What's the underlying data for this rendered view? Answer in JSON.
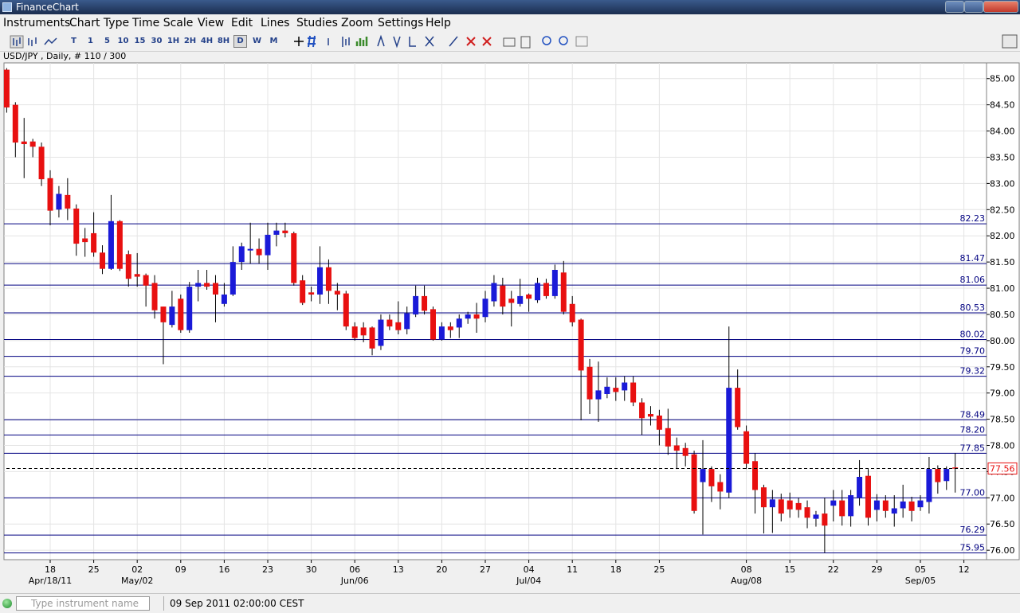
{
  "window": {
    "title": "FinanceChart"
  },
  "menu": [
    "Instruments",
    "Chart Type",
    "Time Scale",
    "View",
    "Edit",
    "Lines",
    "Studies",
    "Zoom",
    "Settings",
    "Help"
  ],
  "toolbar": {
    "periods": [
      "T",
      "1",
      "5",
      "10",
      "15",
      "30",
      "1H",
      "2H",
      "4H",
      "8H",
      "D",
      "W",
      "M"
    ],
    "selected": "D"
  },
  "status": {
    "placeholder": "Type instrument name",
    "datetime": "09 Sep 2011 02:00:00 CEST"
  },
  "chart_data": {
    "type": "candlestick",
    "title": "USD/JPY , Daily, # 110 / 300",
    "up_color": "#1a1ad8",
    "down_color": "#e81010",
    "level_color": "#000080",
    "grid": true,
    "open": [
      85.17,
      84.5,
      83.8,
      83.8,
      83.7,
      83.1,
      82.5,
      82.78,
      82.52,
      81.95,
      82.05,
      81.68,
      81.37,
      82.28,
      81.65,
      81.27,
      81.25,
      81.1,
      80.65,
      80.3,
      80.8,
      80.2,
      81.03,
      81.1,
      81.1,
      80.7,
      80.88,
      81.5,
      81.72,
      81.75,
      81.63,
      82.02,
      82.1,
      82.05,
      81.15,
      80.92,
      80.88,
      81.4,
      80.95,
      80.9,
      80.27,
      80.25,
      80.25,
      79.9,
      80.4,
      80.35,
      80.22,
      80.5,
      80.85,
      80.6,
      80.02,
      80.27,
      80.25,
      80.42,
      80.5,
      80.45,
      80.75,
      81.05,
      80.8,
      80.7,
      80.88,
      80.77,
      81.1,
      80.85,
      81.3,
      80.7,
      80.4,
      79.5,
      78.88,
      78.98,
      79.1,
      79.05,
      79.2,
      78.82,
      78.6,
      78.57,
      78.33,
      78.0,
      77.95,
      77.83,
      77.3,
      77.55,
      77.3,
      77.1,
      79.1,
      78.27,
      77.7,
      77.2,
      76.82,
      76.97,
      76.95,
      76.9,
      76.82,
      76.6,
      76.7,
      76.85,
      76.95,
      76.65,
      77.0,
      77.42,
      76.77,
      76.95,
      76.7,
      76.8,
      76.93,
      76.82,
      76.92,
      77.55,
      77.32,
      77.58
    ],
    "high": [
      85.2,
      84.55,
      84.25,
      83.85,
      83.78,
      83.25,
      82.95,
      83.1,
      82.6,
      82.15,
      82.45,
      81.82,
      82.78,
      82.3,
      81.72,
      81.67,
      81.28,
      81.25,
      80.65,
      80.95,
      80.88,
      81.12,
      81.35,
      81.35,
      81.25,
      81.1,
      81.8,
      81.87,
      82.25,
      81.95,
      82.25,
      82.25,
      82.25,
      82.08,
      81.25,
      81.03,
      81.8,
      81.55,
      81.1,
      80.95,
      80.35,
      80.35,
      80.27,
      80.5,
      80.5,
      80.75,
      80.65,
      81.05,
      81.05,
      80.65,
      80.35,
      80.35,
      80.5,
      80.55,
      80.72,
      80.95,
      81.25,
      81.2,
      80.95,
      81.18,
      80.9,
      81.2,
      81.18,
      81.45,
      81.52,
      80.85,
      80.42,
      79.65,
      79.6,
      79.3,
      79.3,
      79.32,
      79.32,
      78.9,
      78.75,
      78.68,
      78.7,
      78.15,
      78.05,
      77.9,
      78.1,
      77.6,
      77.45,
      80.27,
      79.45,
      78.38,
      77.85,
      77.25,
      77.15,
      77.08,
      77.1,
      77.0,
      76.95,
      76.75,
      77.0,
      77.15,
      77.15,
      77.15,
      77.72,
      77.55,
      77.07,
      77.05,
      77.05,
      77.25,
      77.02,
      77.05,
      77.78,
      77.62,
      77.6,
      77.85
    ],
    "low": [
      84.35,
      83.5,
      83.1,
      83.5,
      82.95,
      82.2,
      82.35,
      82.3,
      81.62,
      81.6,
      81.6,
      81.27,
      81.35,
      81.33,
      81.03,
      81.03,
      80.65,
      80.42,
      79.55,
      80.25,
      80.15,
      80.15,
      80.75,
      80.97,
      80.35,
      80.65,
      80.85,
      81.35,
      81.47,
      81.47,
      81.35,
      81.8,
      81.97,
      81.05,
      80.68,
      80.75,
      80.7,
      80.7,
      80.58,
      80.2,
      80.0,
      79.97,
      79.72,
      79.82,
      80.2,
      80.12,
      80.12,
      80.45,
      80.5,
      80.0,
      80.0,
      80.05,
      80.05,
      80.32,
      80.15,
      80.35,
      80.65,
      80.5,
      80.27,
      80.65,
      80.55,
      80.72,
      80.8,
      80.8,
      80.5,
      80.27,
      78.48,
      78.6,
      78.45,
      78.9,
      78.85,
      78.85,
      78.75,
      78.2,
      78.38,
      78.0,
      77.82,
      77.55,
      77.6,
      76.7,
      76.3,
      76.92,
      76.78,
      77.0,
      78.3,
      77.55,
      76.7,
      76.32,
      76.33,
      76.55,
      76.62,
      76.62,
      76.42,
      76.45,
      75.95,
      76.55,
      76.47,
      76.45,
      76.85,
      76.47,
      76.55,
      76.62,
      76.45,
      76.62,
      76.55,
      76.75,
      76.7,
      77.08,
      77.15,
      77.1
    ],
    "close": [
      84.45,
      83.78,
      83.75,
      83.7,
      83.08,
      82.48,
      82.8,
      82.52,
      81.85,
      81.88,
      81.68,
      81.37,
      82.28,
      81.37,
      81.18,
      81.22,
      81.05,
      80.58,
      80.35,
      80.65,
      80.2,
      81.03,
      81.1,
      81.03,
      80.88,
      80.88,
      81.5,
      81.8,
      81.75,
      81.63,
      82.02,
      82.1,
      82.05,
      81.1,
      80.72,
      80.88,
      81.4,
      80.95,
      80.88,
      80.27,
      80.05,
      80.1,
      79.85,
      80.4,
      80.27,
      80.2,
      80.52,
      80.85,
      80.57,
      80.02,
      80.27,
      80.2,
      80.42,
      80.5,
      80.42,
      80.8,
      81.1,
      80.65,
      80.72,
      80.85,
      80.8,
      81.1,
      80.85,
      81.35,
      80.55,
      80.35,
      79.43,
      78.88,
      79.05,
      79.12,
      79.02,
      79.2,
      78.82,
      78.52,
      78.55,
      78.3,
      77.98,
      77.9,
      77.8,
      76.75,
      77.55,
      77.22,
      77.12,
      79.1,
      78.35,
      77.65,
      77.15,
      76.82,
      76.97,
      76.7,
      76.78,
      76.77,
      76.62,
      76.68,
      76.47,
      76.95,
      76.65,
      77.05,
      77.4,
      76.62,
      76.95,
      76.75,
      76.8,
      76.93,
      76.75,
      76.95,
      77.55,
      77.3,
      77.55,
      77.56
    ],
    "ylim": [
      75.82,
      85.3
    ],
    "yticks": [
      {
        "value": 76,
        "label": "76.00"
      },
      {
        "value": 76.5,
        "label": "76.50"
      },
      {
        "value": 77,
        "label": "77.00"
      },
      {
        "value": 77.5,
        "label": "77.50"
      },
      {
        "value": 78,
        "label": "78.00"
      },
      {
        "value": 78.5,
        "label": "78.50"
      },
      {
        "value": 79,
        "label": "79.00"
      },
      {
        "value": 79.5,
        "label": "79.50"
      },
      {
        "value": 80,
        "label": "80.00"
      },
      {
        "value": 80.5,
        "label": "80.50"
      },
      {
        "value": 81,
        "label": "81.00"
      },
      {
        "value": 81.5,
        "label": "81.50"
      },
      {
        "value": 82,
        "label": "82.00"
      },
      {
        "value": 82.5,
        "label": "82.50"
      },
      {
        "value": 83,
        "label": "83.00"
      },
      {
        "value": 83.5,
        "label": "83.50"
      },
      {
        "value": 84,
        "label": "84.00"
      },
      {
        "value": 84.5,
        "label": "84.50"
      },
      {
        "value": 85,
        "label": "85.00"
      }
    ],
    "xticks": [
      {
        "value": 5,
        "label": "18"
      },
      {
        "value": 10,
        "label": "25"
      },
      {
        "value": 15,
        "label": "02"
      },
      {
        "value": 20,
        "label": "09"
      },
      {
        "value": 25,
        "label": "16"
      },
      {
        "value": 30,
        "label": "23"
      },
      {
        "value": 35,
        "label": "30"
      },
      {
        "value": 40,
        "label": "06"
      },
      {
        "value": 45,
        "label": "13"
      },
      {
        "value": 50,
        "label": "20"
      },
      {
        "value": 55,
        "label": "27"
      },
      {
        "value": 60,
        "label": "04"
      },
      {
        "value": 65,
        "label": "11"
      },
      {
        "value": 70,
        "label": "18"
      },
      {
        "value": 75,
        "label": "25"
      },
      {
        "value": 85,
        "label": "08"
      },
      {
        "value": 90,
        "label": "15"
      },
      {
        "value": 95,
        "label": "22"
      },
      {
        "value": 100,
        "label": "29"
      },
      {
        "value": 105,
        "label": "05"
      },
      {
        "value": 110,
        "label": "12"
      }
    ],
    "xticks_major": [
      {
        "value": 5,
        "label": "Apr/18/11"
      },
      {
        "value": 15,
        "label": "May/02"
      },
      {
        "value": 40,
        "label": "Jun/06"
      },
      {
        "value": 60,
        "label": "Jul/04"
      },
      {
        "value": 85,
        "label": "Aug/08"
      },
      {
        "value": 105,
        "label": "Sep/05"
      }
    ],
    "levels": [
      {
        "value": 82.23,
        "label": "82.23"
      },
      {
        "value": 81.47,
        "label": "81.47"
      },
      {
        "value": 81.06,
        "label": "81.06"
      },
      {
        "value": 80.53,
        "label": "80.53"
      },
      {
        "value": 80.02,
        "label": "80.02"
      },
      {
        "value": 79.7,
        "label": "79.70"
      },
      {
        "value": 79.32,
        "label": "79.32"
      },
      {
        "value": 78.49,
        "label": "78.49"
      },
      {
        "value": 78.2,
        "label": "78.20"
      },
      {
        "value": 77.85,
        "label": "77.85"
      },
      {
        "value": 77.0,
        "label": "77.00"
      },
      {
        "value": 76.29,
        "label": "76.29"
      },
      {
        "value": 75.95,
        "label": "75.95"
      }
    ],
    "last_price": {
      "value": 77.56,
      "label": "77.56"
    }
  }
}
